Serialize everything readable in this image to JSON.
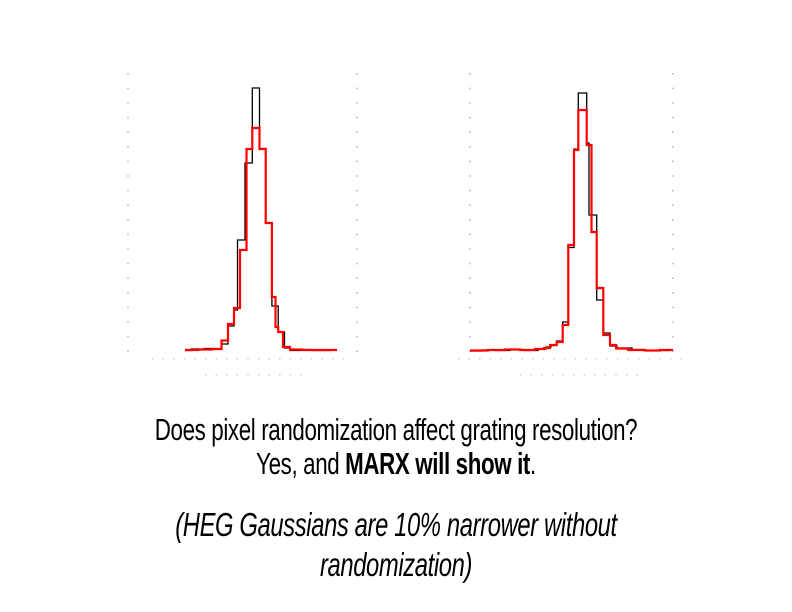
{
  "slide": {
    "background": "#ffffff",
    "text_color": "#000000"
  },
  "caption": {
    "line1": "Does pixel randomization affect grating resolution?",
    "line2_prefix": "Yes, and ",
    "line2_bold": "MARX will show it",
    "line2_suffix": ".",
    "line3": "(HEG Gaussians are 10% narrower without randomization)"
  },
  "colors": {
    "histogram_red": "#ff0000",
    "histogram_black": "#000000",
    "frame_dots": "#999999",
    "faded_label_remnants": "#b9b9b9"
  },
  "chart_data": [
    {
      "id": "left-histogram",
      "type": "line",
      "subtype": "step-histogram-overlay",
      "title": "",
      "axis_labels_visible": false,
      "coords": "page-pixels, y down",
      "baseline_y": 351,
      "frame": {
        "x_left": 128,
        "x_right": 357,
        "y_top": 73,
        "y_bottom": 362,
        "style": "dotted",
        "color": "#999999"
      },
      "remnant_rows": [
        {
          "y": 359,
          "x0": 152,
          "x1": 350
        },
        {
          "y": 375,
          "x0": 205,
          "x1": 305
        }
      ],
      "series": [
        {
          "name": "black-series",
          "color": "#000000",
          "stroke_width": 1.3,
          "x_end": 330,
          "steps": [
            [
              185,
              350.5
            ],
            [
              191,
              349
            ],
            [
              204,
              348.5
            ],
            [
              215,
              349
            ],
            [
              221.5,
              344
            ],
            [
              228,
              326
            ],
            [
              234,
              310
            ],
            [
              237.5,
              240
            ],
            [
              245,
              163
            ],
            [
              252.3,
              88
            ],
            [
              259.5,
              148.5
            ],
            [
              265.7,
              223
            ],
            [
              271.9,
              306
            ],
            [
              278.2,
              332
            ],
            [
              284.5,
              348
            ],
            [
              290,
              350.5
            ],
            [
              300,
              349.5
            ],
            [
              312,
              350.5
            ]
          ]
        },
        {
          "name": "red-series",
          "color": "#ff0000",
          "stroke_width": 2.2,
          "x_end": 337,
          "steps": [
            [
              185,
              350
            ],
            [
              198,
              349.5
            ],
            [
              212,
              349
            ],
            [
              221.5,
              340.5
            ],
            [
              228,
              324
            ],
            [
              234,
              308
            ],
            [
              240,
              250
            ],
            [
              246.5,
              149
            ],
            [
              252.3,
              128
            ],
            [
              259.5,
              149
            ],
            [
              265.7,
              223
            ],
            [
              271.9,
              297
            ],
            [
              275.5,
              327
            ],
            [
              278.2,
              332
            ],
            [
              283,
              347
            ],
            [
              290,
              349.5
            ],
            [
              302,
              350
            ]
          ]
        }
      ]
    },
    {
      "id": "right-histogram",
      "type": "line",
      "subtype": "step-histogram-overlay",
      "title": "",
      "axis_labels_visible": false,
      "coords": "page-pixels, y down",
      "baseline_y": 351,
      "frame": {
        "x_left": 470,
        "x_right": 673,
        "y_top": 73,
        "y_bottom": 362,
        "style": "dotted",
        "color": "#999999"
      },
      "remnant_rows": [
        {
          "y": 359,
          "x0": 458,
          "x1": 688
        },
        {
          "y": 375,
          "x0": 520,
          "x1": 640
        }
      ],
      "series": [
        {
          "name": "black-series",
          "color": "#000000",
          "stroke_width": 1.3,
          "x_end": 670,
          "steps": [
            [
              470,
              351
            ],
            [
              482,
              350
            ],
            [
              495,
              350.5
            ],
            [
              510,
              349.5
            ],
            [
              524,
              350.5
            ],
            [
              538,
              349
            ],
            [
              546,
              347
            ],
            [
              551,
              345.5
            ],
            [
              556.7,
              341
            ],
            [
              562.7,
              322
            ],
            [
              568.3,
              247.5
            ],
            [
              574,
              149
            ],
            [
              578.3,
              93
            ],
            [
              586.7,
              143
            ],
            [
              589,
              215
            ],
            [
              596.7,
              300
            ],
            [
              603.3,
              333
            ],
            [
              610,
              346
            ],
            [
              617,
              348
            ],
            [
              632,
              349.5
            ],
            [
              645,
              350.5
            ]
          ]
        },
        {
          "name": "red-series",
          "color": "#ff0000",
          "stroke_width": 2.2,
          "x_end": 673,
          "steps": [
            [
              470,
              350.5
            ],
            [
              488,
              350
            ],
            [
              505,
              349.5
            ],
            [
              520,
              350
            ],
            [
              535,
              349
            ],
            [
              544,
              348
            ],
            [
              550,
              345
            ],
            [
              556.7,
              342
            ],
            [
              562.7,
              325
            ],
            [
              568.3,
              245
            ],
            [
              574,
              150
            ],
            [
              578.3,
              110
            ],
            [
              586.7,
              145
            ],
            [
              591.5,
              232
            ],
            [
              596.7,
              288
            ],
            [
              603.3,
              335
            ],
            [
              610,
              345
            ],
            [
              616,
              348.5
            ],
            [
              628,
              350
            ],
            [
              645,
              350.5
            ],
            [
              660,
              350
            ]
          ]
        }
      ]
    }
  ]
}
